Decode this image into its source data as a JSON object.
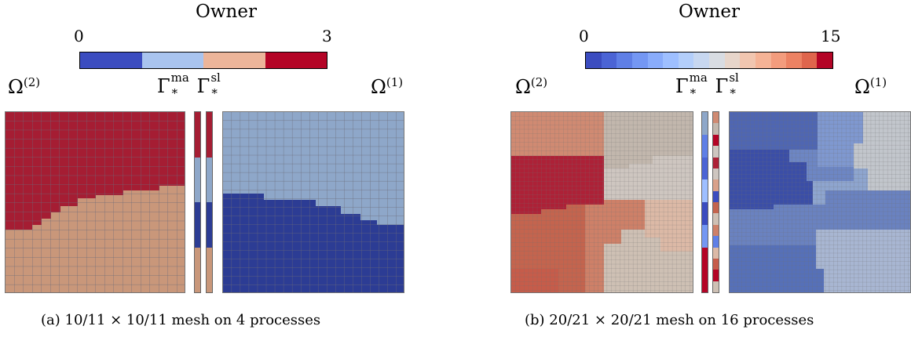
{
  "panels": [
    {
      "colorbar": {
        "title": "Owner",
        "min_label": "0",
        "max_label": "3",
        "n_levels": 4,
        "colors": [
          "#3b4cc0",
          "#a9c4ef",
          "#ecb59a",
          "#b40426"
        ]
      },
      "labels": {
        "omega_left": "Ω",
        "omega_left_sup": "(2)",
        "gamma_base_1": "Γ",
        "gamma_sup_1": "ma",
        "gamma_sub_1": "*",
        "gamma_base_2": "Γ",
        "gamma_sup_2": "sl",
        "gamma_sub_2": "*",
        "omega_right": "Ω",
        "omega_right_sup": "(1)"
      },
      "caption": "(a) 10/11 × 10/11 mesh on 4 processes",
      "mesh_colors": {
        "red": "#a51d33",
        "peach": "#c9977a",
        "lightblue": "#8ea7c9",
        "blue": "#2c3c94"
      }
    },
    {
      "colorbar": {
        "title": "Owner",
        "min_label": "0",
        "max_label": "15",
        "n_levels": 16,
        "colors": [
          "#3b4cc0",
          "#4b64d5",
          "#5f7fe6",
          "#7497f3",
          "#89acfb",
          "#9ebfff",
          "#b3cefa",
          "#c7d7f0",
          "#d8dce2",
          "#e7d5ca",
          "#f1c6b0",
          "#f5b396",
          "#f39c7d",
          "#ec8263",
          "#df654c",
          "#b40426"
        ]
      },
      "labels": {
        "omega_left": "Ω",
        "omega_left_sup": "(2)",
        "gamma_base_1": "Γ",
        "gamma_sup_1": "ma",
        "gamma_sub_1": "*",
        "gamma_base_2": "Γ",
        "gamma_sup_2": "sl",
        "gamma_sub_2": "*",
        "omega_right": "Ω",
        "omega_right_sup": "(1)"
      },
      "caption": "(b) 20/21 × 20/21 mesh on 16 processes"
    }
  ]
}
